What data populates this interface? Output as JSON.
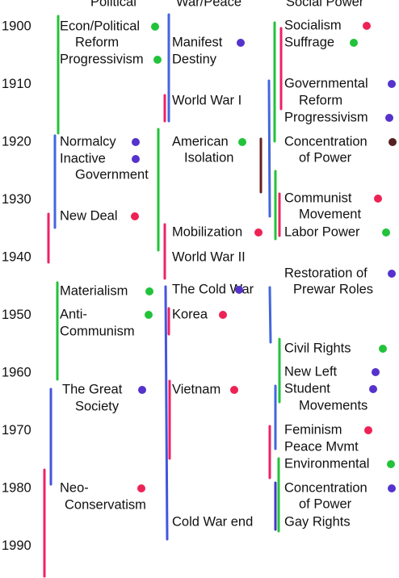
{
  "years": [
    "1900",
    "1910",
    "1920",
    "1930",
    "1940",
    "1950",
    "1960",
    "1970",
    "1980",
    "1990"
  ],
  "columns": [
    {
      "header": "Political",
      "items": [
        {
          "lines": [
            "Econ/Political",
            "Reform",
            "Progressivism"
          ]
        },
        {
          "lines": [
            "Normalcy",
            "Inactive",
            "Government"
          ]
        },
        {
          "lines": [
            "New Deal"
          ]
        },
        {
          "lines": [
            "Materialism"
          ]
        },
        {
          "lines": [
            "Anti-",
            "Communism"
          ]
        },
        {
          "lines": [
            "The Great",
            "Society"
          ]
        },
        {
          "lines": [
            "Neo-",
            "Conservatism"
          ]
        }
      ]
    },
    {
      "header": "War/Peace",
      "items": [
        {
          "lines": [
            "Manifest",
            "Destiny"
          ]
        },
        {
          "lines": [
            "World War I"
          ]
        },
        {
          "lines": [
            "American",
            "Isolation"
          ]
        },
        {
          "lines": [
            "Mobilization"
          ]
        },
        {
          "lines": [
            "World War II"
          ]
        },
        {
          "lines": [
            "The Cold War"
          ]
        },
        {
          "lines": [
            "Korea"
          ]
        },
        {
          "lines": [
            "Vietnam"
          ]
        },
        {
          "lines": [
            "Cold War end"
          ]
        }
      ]
    },
    {
      "header": "Social Power",
      "items": [
        {
          "lines": [
            "Socialism"
          ]
        },
        {
          "lines": [
            "Suffrage"
          ]
        },
        {
          "lines": [
            "Governmental",
            "Reform",
            "Progressivism"
          ]
        },
        {
          "lines": [
            "Concentration",
            "of Power"
          ]
        },
        {
          "lines": [
            "Communist",
            "Movement"
          ]
        },
        {
          "lines": [
            "Labor Power"
          ]
        },
        {
          "lines": [
            "Restoration of",
            "Prewar Roles"
          ]
        },
        {
          "lines": [
            "Civil Rights"
          ]
        },
        {
          "lines": [
            "New Left"
          ]
        },
        {
          "lines": [
            "Student",
            "Movements"
          ]
        },
        {
          "lines": [
            "Feminism"
          ]
        },
        {
          "lines": [
            "Peace Mvmt"
          ]
        },
        {
          "lines": [
            "Environmental"
          ]
        },
        {
          "lines": [
            "Concentration",
            "of Power"
          ]
        },
        {
          "lines": [
            "Gay Rights"
          ]
        }
      ]
    }
  ]
}
